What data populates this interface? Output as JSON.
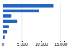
{
  "chart_data": {
    "type": "bar",
    "orientation": "horizontal",
    "categories": [
      null,
      null,
      null,
      null,
      null,
      null,
      null
    ],
    "values": [
      13200,
      9500,
      2200,
      3800,
      1600,
      1100,
      500
    ],
    "color": "#2563c2",
    "xlim": [
      0,
      16000
    ],
    "xticks": [
      0,
      {
        "value": 5000,
        "label": "5,000"
      },
      {
        "value": 10000,
        "label": "10,000"
      },
      {
        "value": 15000,
        "label": "15,000"
      }
    ],
    "grid": true,
    "tick_labels": "x"
  }
}
